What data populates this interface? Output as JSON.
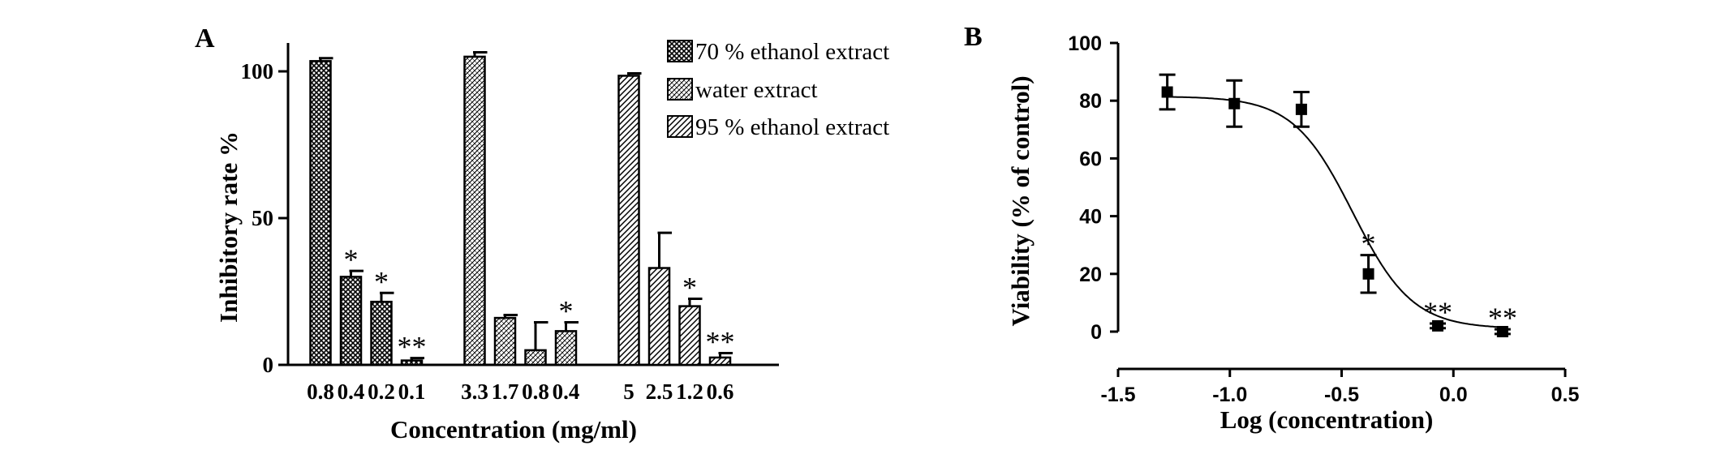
{
  "panel_a": {
    "letter": "A",
    "legend": [
      "70 % ethanol extract",
      "water extract",
      "95 % ethanol extract"
    ]
  },
  "panel_b": {
    "letter": "B"
  },
  "chart_data": [
    {
      "type": "bar",
      "xlabel": "Concentration (mg/ml)",
      "ylabel": "Inhibitory rate %",
      "ylim": [
        0,
        108
      ],
      "yticks": [
        0,
        50,
        100
      ],
      "legend_position": "top-right",
      "series": [
        {
          "name": "70 % ethanol extract",
          "pattern": "crosshatch",
          "categories": [
            "0.8",
            "0.4",
            "0.2",
            "0.1"
          ],
          "values": [
            103.5,
            30.0,
            21.5,
            1.5
          ],
          "errors": [
            1.0,
            2.0,
            3.0,
            0.8
          ],
          "annotations": [
            "",
            "*",
            "*",
            "**"
          ]
        },
        {
          "name": "water extract",
          "pattern": "dots",
          "categories": [
            "3.3",
            "1.7",
            "0.8",
            "0.4"
          ],
          "values": [
            105.0,
            16.0,
            5.0,
            11.5
          ],
          "errors": [
            1.5,
            1.0,
            9.5,
            3.0
          ],
          "annotations": [
            "",
            "",
            "",
            "*"
          ]
        },
        {
          "name": "95 % ethanol extract",
          "pattern": "diagonal",
          "categories": [
            "5",
            "2.5",
            "1.2",
            "0.6"
          ],
          "values": [
            98.5,
            33.0,
            20.0,
            2.5
          ],
          "errors": [
            0.8,
            12.0,
            2.5,
            1.5
          ],
          "annotations": [
            "",
            "",
            "*",
            "**"
          ]
        }
      ]
    },
    {
      "type": "scatter",
      "xlabel": "Log (concentration)",
      "ylabel": "Viability (% of control)",
      "xlim": [
        -1.5,
        0.5
      ],
      "ylim": [
        0,
        100
      ],
      "xticks": [
        -1.5,
        -1.0,
        -0.5,
        0.0,
        0.5
      ],
      "xtick_labels": [
        "-1.5",
        "-1.0",
        "-0.5",
        "0.0",
        "0.5"
      ],
      "yticks": [
        0,
        20,
        40,
        60,
        80,
        100
      ],
      "points": [
        {
          "x": -1.28,
          "y": 83,
          "err": 6,
          "annotation": ""
        },
        {
          "x": -0.98,
          "y": 79,
          "err": 8,
          "annotation": ""
        },
        {
          "x": -0.68,
          "y": 77,
          "err": 6,
          "annotation": ""
        },
        {
          "x": -0.38,
          "y": 20,
          "err": 6.5,
          "annotation": "*"
        },
        {
          "x": -0.07,
          "y": 2,
          "err": 0.8,
          "annotation": "**"
        },
        {
          "x": 0.22,
          "y": 0,
          "err": 0.8,
          "annotation": "**"
        }
      ],
      "fit_curve": {
        "model": "sigmoid",
        "top": 81.5,
        "bottom": 1.0,
        "logIC50": -0.45,
        "hill_slope": -10
      }
    }
  ]
}
